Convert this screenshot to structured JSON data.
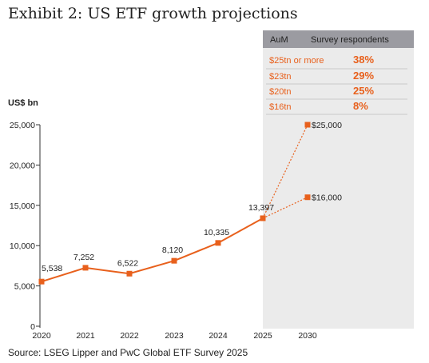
{
  "title": "Exhibit 2: US ETF growth projections",
  "unit_label": "US$ bn",
  "source": "Source: LSEG Lipper and PwC Global ETF Survey 2025",
  "colors": {
    "accent": "#e8601c",
    "projection_bg": "#ebebeb",
    "table_header_bg": "#9b9ba1"
  },
  "table": {
    "headers": [
      "AuM",
      "Survey respondents"
    ],
    "rows": [
      {
        "aum": "$25tn or more",
        "pct": "38%"
      },
      {
        "aum": "$23tn",
        "pct": "29%"
      },
      {
        "aum": "$20tn",
        "pct": "25%"
      },
      {
        "aum": "$16tn",
        "pct": "8%"
      }
    ]
  },
  "chart_data": {
    "type": "line",
    "categories": [
      "2020",
      "2021",
      "2022",
      "2023",
      "2024",
      "2025",
      "2030"
    ],
    "series": [
      {
        "values": [
          5538,
          7252,
          6522,
          8120,
          10335,
          13397,
          null
        ],
        "labels": [
          "5,538",
          "7,252",
          "6,522",
          "8,120",
          "10,335",
          "13,397",
          ""
        ]
      },
      {
        "values": [
          null,
          null,
          null,
          null,
          null,
          13397,
          25000
        ],
        "labels": [
          "",
          "",
          "",
          "",
          "",
          "",
          "$25,000"
        ],
        "style": "dashed"
      },
      {
        "values": [
          null,
          null,
          null,
          null,
          null,
          13397,
          16000
        ],
        "labels": [
          "",
          "",
          "",
          "",
          "",
          "",
          "$16,000"
        ],
        "style": "dashed"
      }
    ],
    "ylim": [
      0,
      25000
    ],
    "yticks": [
      0,
      5000,
      10000,
      15000,
      20000,
      25000
    ],
    "ytick_labels": [
      "0",
      "5,000",
      "10,000",
      "15,000",
      "20,000",
      "25,000"
    ],
    "grid": false,
    "ylabel": "US$ bn",
    "xlabel": ""
  }
}
